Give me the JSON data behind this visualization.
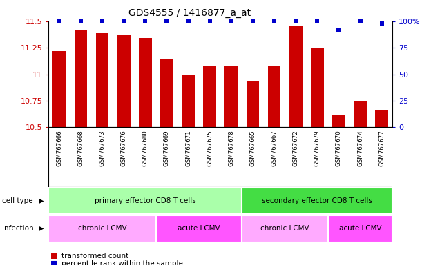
{
  "title": "GDS4555 / 1416877_a_at",
  "samples": [
    "GSM767666",
    "GSM767668",
    "GSM767673",
    "GSM767676",
    "GSM767680",
    "GSM767669",
    "GSM767671",
    "GSM767675",
    "GSM767678",
    "GSM767665",
    "GSM767667",
    "GSM767672",
    "GSM767679",
    "GSM767670",
    "GSM767674",
    "GSM767677"
  ],
  "bar_values": [
    11.22,
    11.42,
    11.39,
    11.37,
    11.34,
    11.14,
    10.99,
    11.08,
    11.08,
    10.94,
    11.08,
    11.45,
    11.25,
    10.62,
    10.74,
    10.66
  ],
  "percentile_values": [
    100,
    100,
    100,
    100,
    100,
    100,
    100,
    100,
    100,
    100,
    100,
    100,
    100,
    92,
    100,
    98
  ],
  "bar_color": "#cc0000",
  "percentile_color": "#0000cc",
  "ylim_left": [
    10.5,
    11.5
  ],
  "ylim_right": [
    0,
    100
  ],
  "yticks_left": [
    10.5,
    10.75,
    11.0,
    11.25,
    11.5
  ],
  "ytick_labels_left": [
    "10.5",
    "10.75",
    "11",
    "11.25",
    "11.5"
  ],
  "yticks_right": [
    0,
    25,
    50,
    75,
    100
  ],
  "ytick_labels_right": [
    "0",
    "25",
    "50",
    "75",
    "100%"
  ],
  "cell_type_labels": [
    {
      "text": "primary effector CD8 T cells",
      "start": 0,
      "end": 8,
      "color": "#aaffaa"
    },
    {
      "text": "secondary effector CD8 T cells",
      "start": 9,
      "end": 15,
      "color": "#44dd44"
    }
  ],
  "infection_labels": [
    {
      "text": "chronic LCMV",
      "start": 0,
      "end": 4,
      "color": "#ffaaff"
    },
    {
      "text": "acute LCMV",
      "start": 5,
      "end": 8,
      "color": "#ff55ff"
    },
    {
      "text": "chronic LCMV",
      "start": 9,
      "end": 12,
      "color": "#ffaaff"
    },
    {
      "text": "acute LCMV",
      "start": 13,
      "end": 15,
      "color": "#ff55ff"
    }
  ],
  "cell_type_row_label": "cell type",
  "infection_row_label": "infection",
  "legend_items": [
    {
      "color": "#cc0000",
      "label": "transformed count"
    },
    {
      "color": "#0000cc",
      "label": "percentile rank within the sample"
    }
  ],
  "bar_width": 0.6,
  "background_color": "#ffffff",
  "grid_color": "#888888",
  "label_bg_color": "#dddddd"
}
